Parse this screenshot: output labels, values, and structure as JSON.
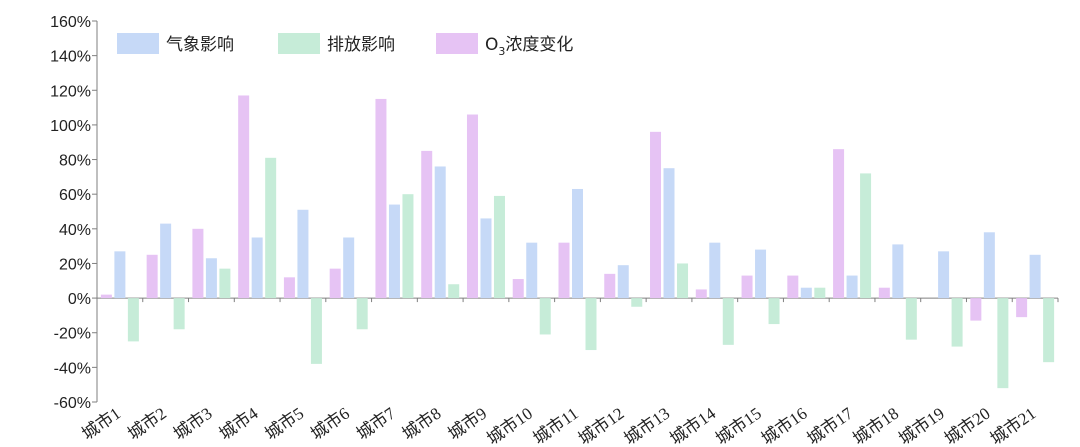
{
  "chart_data": {
    "type": "bar",
    "title": "",
    "xlabel": "",
    "ylabel": "",
    "ylim": [
      -60,
      160
    ],
    "y_ticks": [
      -60,
      -40,
      -20,
      0,
      20,
      40,
      60,
      80,
      100,
      120,
      140,
      160
    ],
    "y_tick_labels": [
      "-60%",
      "-40%",
      "-20%",
      "0%",
      "20%",
      "40%",
      "60%",
      "80%",
      "100%",
      "120%",
      "140%",
      "160%"
    ],
    "grid": false,
    "legend_position": "top-left",
    "categories": [
      "城市1",
      "城市2",
      "城市3",
      "城市4",
      "城市5",
      "城市6",
      "城市7",
      "城市8",
      "城市9",
      "城市10",
      "城市11",
      "城市12",
      "城市13",
      "城市14",
      "城市15",
      "城市16",
      "城市17",
      "城市18",
      "城市19",
      "城市20",
      "城市21"
    ],
    "series": [
      {
        "name": "O3浓度变化",
        "legend_main": "O",
        "legend_sub": "3",
        "legend_rest": "浓度变化",
        "color": "#e6c3f4",
        "values": [
          2,
          25,
          40,
          117,
          12,
          17,
          115,
          85,
          106,
          11,
          32,
          14,
          96,
          5,
          13,
          13,
          86,
          6,
          0,
          -13,
          -11
        ]
      },
      {
        "name": "气象影响",
        "color": "#c6d9f7",
        "values": [
          27,
          43,
          23,
          35,
          51,
          35,
          54,
          76,
          46,
          32,
          63,
          19,
          75,
          32,
          28,
          6,
          13,
          31,
          27,
          38,
          25
        ]
      },
      {
        "name": "排放影响",
        "color": "#c6ecd8",
        "values": [
          -25,
          -18,
          17,
          81,
          -38,
          -18,
          60,
          8,
          59,
          -21,
          -30,
          -5,
          20,
          -27,
          -15,
          6,
          72,
          -24,
          -28,
          -52,
          -37
        ]
      }
    ],
    "legend_order": [
      "气象影响",
      "排放影响",
      "O3浓度变化"
    ]
  }
}
